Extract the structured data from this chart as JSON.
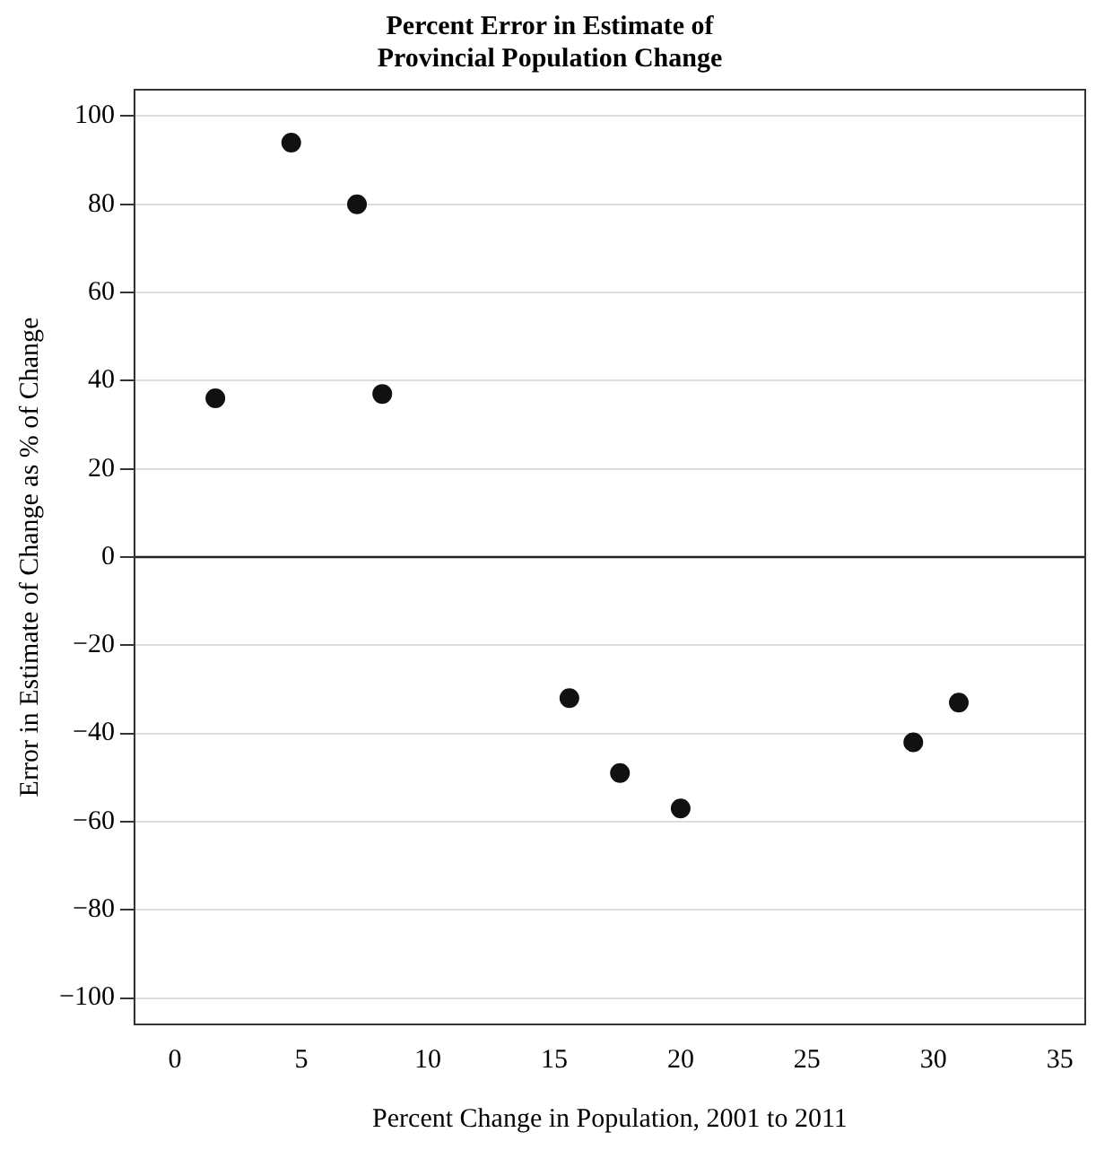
{
  "chart_data": {
    "type": "scatter",
    "title": "Percent Error in Estimate of\nProvincial Population Change",
    "xlabel": "Percent Change in Population, 2001 to 2011",
    "ylabel": "Error in Estimate of Change as % of Change",
    "x": [
      1.6,
      4.6,
      7.2,
      8.2,
      15.6,
      17.6,
      20,
      29.2,
      31
    ],
    "series": [
      {
        "color": "#111111",
        "values": [
          36,
          94,
          80,
          37,
          -32,
          -49,
          -57,
          -42,
          -33
        ]
      }
    ],
    "xlim": [
      -1.6,
      36
    ],
    "xticks": [
      0,
      5,
      10,
      15,
      20,
      25,
      30,
      35
    ],
    "ylim": [
      -106,
      106
    ],
    "yticks": [
      {
        "value": -100,
        "label": "−100"
      },
      {
        "value": -80,
        "label": "−80"
      },
      {
        "value": -60,
        "label": "−60"
      },
      {
        "value": -40,
        "label": "−40"
      },
      {
        "value": -20,
        "label": "−20"
      },
      0,
      20,
      40,
      60,
      80,
      100
    ],
    "ref_lines": [
      {
        "axis": "y",
        "value": 0,
        "color": "#222222",
        "line_style": "solid"
      }
    ],
    "grid": "y",
    "marker": "circle",
    "legend": false
  }
}
